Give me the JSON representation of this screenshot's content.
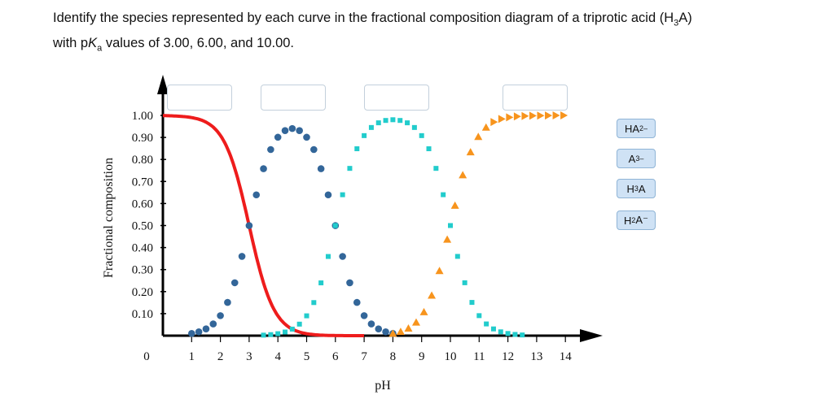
{
  "question": {
    "line1_prefix": "Identify the species represented by each curve in the fractional composition diagram of a triprotic acid (H",
    "line1_sub": "3",
    "line1_suffix": "A)",
    "line2_prefix": "with p",
    "line2_k": "K",
    "line2_ksub": "a",
    "line2_suffix": " values of 3.00, 6.00, and 10.00."
  },
  "answer_chips": [
    {
      "base": "HA",
      "sup": "2–",
      "sub": "",
      "tail": ""
    },
    {
      "base": "A",
      "sup": "3–",
      "sub": "",
      "tail": ""
    },
    {
      "base": "H",
      "sup": "",
      "sub": "3",
      "tail": "A"
    },
    {
      "base": "H",
      "sup": "",
      "sub": "2",
      "tail": "A⁻"
    }
  ],
  "colors": {
    "h3a_curve": "#ee1c1c",
    "h2a_curve": "#336699",
    "ha2_curve": "#22cccc",
    "a3_curve": "#f7941d",
    "chip_fill": "#cfe2f5",
    "chip_border": "#8fb4d6",
    "drop_border": "#c3d0dc"
  },
  "chart_data": {
    "type": "line",
    "xlabel": "pH",
    "ylabel": "Fractional composition",
    "xlim": [
      0,
      14
    ],
    "ylim": [
      0,
      1.0
    ],
    "x_ticks": [
      "0",
      "1",
      "2",
      "3",
      "4",
      "5",
      "6",
      "7",
      "8",
      "9",
      "10",
      "11",
      "12",
      "13",
      "14"
    ],
    "y_ticks": [
      "1.00",
      "0.90",
      "0.80",
      "0.70",
      "0.60",
      "0.50",
      "0.40",
      "0.30",
      "0.20",
      "0.10"
    ],
    "pKa": [
      3.0,
      6.0,
      10.0
    ],
    "series": [
      {
        "style": "solid-line",
        "color": "#ee1c1c",
        "x_range": [
          0,
          7
        ],
        "step": 0.05
      },
      {
        "style": "round-dots",
        "color": "#336699",
        "x_range": [
          1,
          8
        ],
        "step": 0.25
      },
      {
        "style": "square-dots",
        "color": "#22cccc",
        "x_range": [
          3.5,
          12.5
        ],
        "step": 0.25
      },
      {
        "style": "triangle-markers",
        "color": "#f7941d",
        "x_range": [
          8,
          14
        ],
        "step": 0.27
      }
    ],
    "drop_targets_count": 4
  }
}
